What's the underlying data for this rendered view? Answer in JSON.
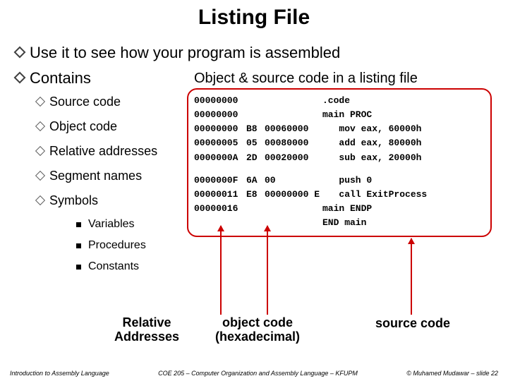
{
  "title": "Listing File",
  "bullets": {
    "b1": "Use it to see how your program is assembled",
    "b2": "Contains",
    "subs": [
      "Source code",
      "Object code",
      "Relative addresses",
      "Segment names",
      "Symbols"
    ],
    "subs2": [
      "Variables",
      "Procedures",
      "Constants"
    ]
  },
  "listing_title": "Object & source code in a listing file",
  "code": {
    "rows": [
      {
        "addr": "00000000",
        "b": "",
        "c": "",
        "src": ".code"
      },
      {
        "addr": "00000000",
        "b": "",
        "c": "",
        "src": "main PROC"
      },
      {
        "addr": "00000000",
        "b": "B8",
        "c": "00060000",
        "src": "   mov eax, 60000h"
      },
      {
        "addr": "00000005",
        "b": "05",
        "c": "00080000",
        "src": "   add eax, 80000h"
      },
      {
        "addr": "0000000A",
        "b": "2D",
        "c": "00020000",
        "src": "   sub eax, 20000h"
      },
      {
        "addr": "",
        "b": "",
        "c": "",
        "src": ""
      },
      {
        "addr": "0000000F",
        "b": "6A",
        "c": "00",
        "src": "   push 0"
      },
      {
        "addr": "00000011",
        "b": "E8",
        "c": "00000000 E",
        "src": "   call ExitProcess"
      },
      {
        "addr": "00000016",
        "b": "",
        "c": "",
        "src": "main ENDP"
      },
      {
        "addr": "",
        "b": "",
        "c": "",
        "src": "END main"
      }
    ]
  },
  "annotations": {
    "rel": "Relative Addresses",
    "obj": "object code (hexadecimal)",
    "src": "source code"
  },
  "footer": {
    "left": "Introduction to Assembly Language",
    "mid": "COE 205 – Computer Organization and Assembly Language – KFUPM",
    "right": "© Muhamed Mudawar – slide 22"
  },
  "colors": {
    "title_bg": "#000080",
    "box_border": "#cc0000"
  }
}
